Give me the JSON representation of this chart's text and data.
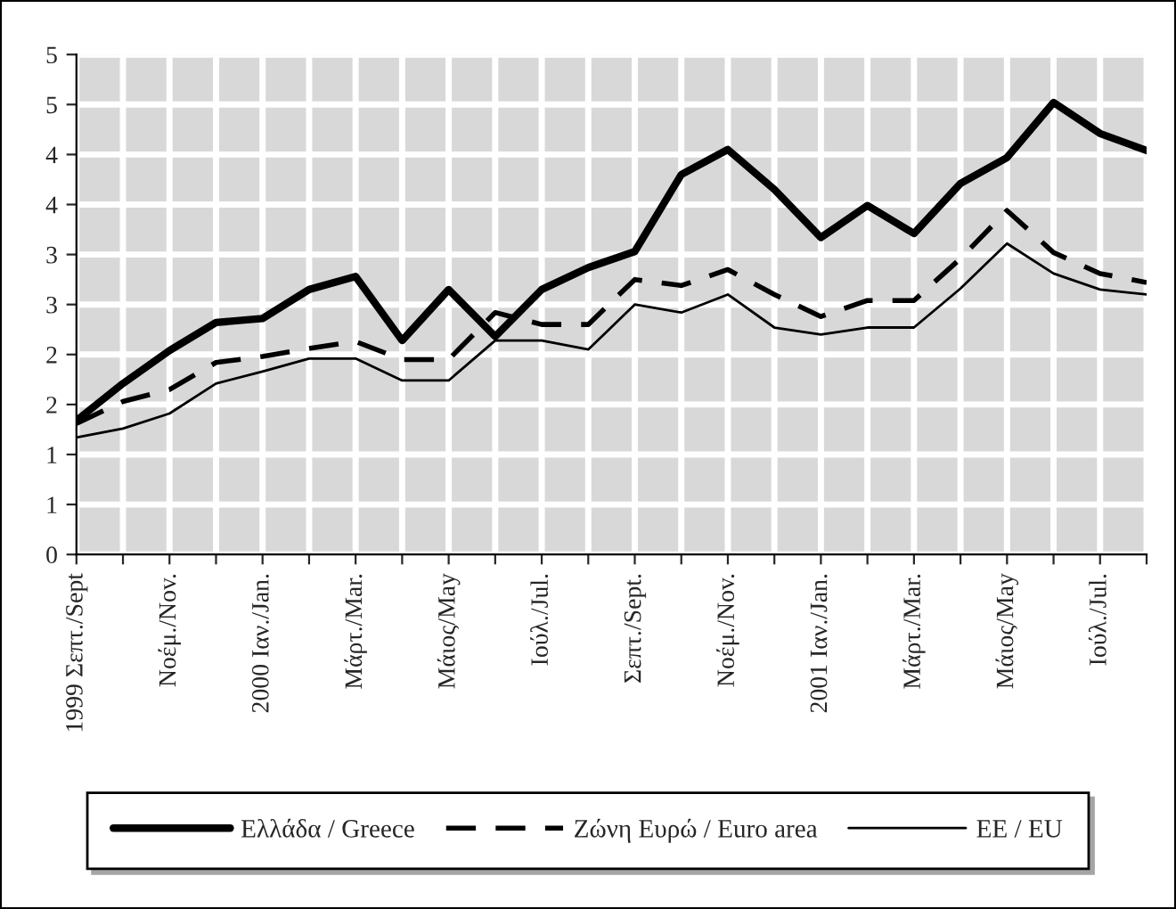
{
  "chart_data": {
    "type": "line",
    "categories": [
      "1999 Σεπτ./Sept",
      null,
      "Νοέμ./Nov.",
      null,
      "2000 Ιαν./Jan.",
      null,
      "Μάρτ./Mar.",
      null,
      "Μάιος/May",
      null,
      "Ιούλ./Jul.",
      null,
      "Σεπτ./Sept.",
      null,
      "Νοέμ./Nov.",
      null,
      "2001 Ιαν./Jan.",
      null,
      "Μάρτ./Mar.",
      null,
      "Μάιος/May",
      null,
      "Ιούλ./Jul.",
      null
    ],
    "series": [
      {
        "name": "Ελλάδα / Greece",
        "color": "#000000",
        "line_style": "solid",
        "values": [
          1.34,
          1.71,
          2.04,
          2.32,
          2.36,
          2.65,
          2.78,
          2.14,
          2.65,
          2.18,
          2.65,
          2.87,
          3.03,
          3.8,
          4.05,
          3.65,
          3.17,
          3.49,
          3.21,
          3.71,
          3.97,
          4.52,
          4.21,
          4.04
        ]
      },
      {
        "name": "Ζώνη Ευρώ / Euro area",
        "color": "#000000",
        "line_style": "dashed",
        "values": [
          1.31,
          1.53,
          1.65,
          1.92,
          1.98,
          2.06,
          2.13,
          1.95,
          1.95,
          2.42,
          2.3,
          2.3,
          2.75,
          2.69,
          2.85,
          2.6,
          2.38,
          2.54,
          2.54,
          2.96,
          3.44,
          3.02,
          2.81,
          2.72
        ]
      },
      {
        "name": "ΕΕ / EU",
        "color": "#000000",
        "line_style": "solid",
        "values": [
          1.17,
          1.26,
          1.41,
          1.71,
          1.83,
          1.96,
          1.96,
          1.74,
          1.74,
          2.14,
          2.14,
          2.05,
          2.5,
          2.42,
          2.6,
          2.27,
          2.2,
          2.27,
          2.27,
          2.66,
          3.11,
          2.81,
          2.65,
          2.6
        ]
      }
    ],
    "ylim": [
      0,
      5
    ],
    "yticks": [
      0,
      {
        "value": 0.5,
        "label": "1"
      },
      {
        "value": 1,
        "label": "1"
      },
      {
        "value": 1.5,
        "label": "2"
      },
      {
        "value": 2,
        "label": "2"
      },
      {
        "value": 2.5,
        "label": "3"
      },
      {
        "value": 3,
        "label": "3"
      },
      {
        "value": 3.5,
        "label": "4"
      },
      {
        "value": 4,
        "label": "4"
      },
      {
        "value": 4.5,
        "label": "5"
      },
      {
        "value": 5,
        "label": "5"
      }
    ],
    "grid": true,
    "legend": "bottom",
    "marker": "none"
  }
}
